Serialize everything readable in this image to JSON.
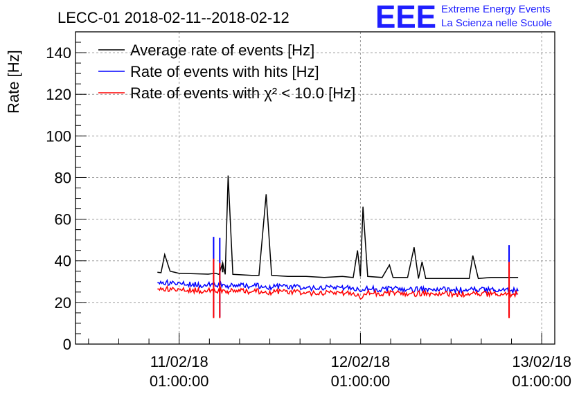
{
  "chart_data": {
    "type": "line",
    "title": "LECC-01 2018-02-11--2018-02-12",
    "ylabel": "Rate [Hz]",
    "xlabel": "",
    "ylim": [
      0,
      150
    ],
    "xlim": [
      -0.286,
      1.036
    ],
    "x_unit": "days since 11/02/18 01:00:00",
    "y_ticks": [
      0,
      20,
      40,
      60,
      80,
      100,
      120,
      140
    ],
    "x_ticks": [
      {
        "x": 0,
        "date": "11/02/18",
        "time": "01:00:00"
      },
      {
        "x": 0.5,
        "date": "12/02/18",
        "time": "01:00:00"
      },
      {
        "x": 1,
        "date": "13/02/18",
        "time": "01:00:00"
      }
    ],
    "grid": true,
    "legend_position": "top-left",
    "series": [
      {
        "name": "Average rate of events [Hz]",
        "color": "#000000",
        "points": [
          [
            -0.06,
            34.5
          ],
          [
            -0.05,
            34.3
          ],
          [
            -0.04,
            43
          ],
          [
            -0.025,
            35
          ],
          [
            0,
            34
          ],
          [
            0.04,
            33.8
          ],
          [
            0.08,
            33.6
          ],
          [
            0.1,
            34
          ],
          [
            0.11,
            33.5
          ],
          [
            0.12,
            39
          ],
          [
            0.127,
            33.5
          ],
          [
            0.135,
            81
          ],
          [
            0.148,
            33.5
          ],
          [
            0.2,
            33
          ],
          [
            0.22,
            33
          ],
          [
            0.24,
            72
          ],
          [
            0.255,
            33
          ],
          [
            0.3,
            32.5
          ],
          [
            0.35,
            32.5
          ],
          [
            0.4,
            32
          ],
          [
            0.45,
            32.5
          ],
          [
            0.48,
            32
          ],
          [
            0.492,
            45
          ],
          [
            0.5,
            32.5
          ],
          [
            0.507,
            66
          ],
          [
            0.52,
            32.5
          ],
          [
            0.56,
            32
          ],
          [
            0.58,
            38
          ],
          [
            0.59,
            32
          ],
          [
            0.63,
            32
          ],
          [
            0.648,
            46.5
          ],
          [
            0.66,
            31.5
          ],
          [
            0.67,
            39.5
          ],
          [
            0.68,
            31.5
          ],
          [
            0.72,
            31.5
          ],
          [
            0.76,
            31.5
          ],
          [
            0.8,
            31.5
          ],
          [
            0.81,
            42.5
          ],
          [
            0.825,
            31.5
          ],
          [
            0.86,
            32
          ],
          [
            0.9,
            32
          ],
          [
            0.935,
            32
          ]
        ],
        "spikes": [
          [
            0.095,
            40
          ],
          [
            0.12,
            39
          ],
          [
            0.91,
            36
          ]
        ]
      },
      {
        "name": "Rate of events with hits [Hz]",
        "color": "#0000ff",
        "points": [
          [
            -0.06,
            29.5
          ],
          [
            0,
            29
          ],
          [
            0.05,
            28.5
          ],
          [
            0.1,
            28.5
          ],
          [
            0.15,
            28
          ],
          [
            0.2,
            28
          ],
          [
            0.25,
            27.5
          ],
          [
            0.3,
            27.5
          ],
          [
            0.35,
            27.2
          ],
          [
            0.4,
            27
          ],
          [
            0.45,
            26.8
          ],
          [
            0.5,
            26.5
          ],
          [
            0.55,
            26.5
          ],
          [
            0.6,
            26.5
          ],
          [
            0.65,
            26.2
          ],
          [
            0.7,
            26.2
          ],
          [
            0.75,
            26
          ],
          [
            0.8,
            26
          ],
          [
            0.85,
            26
          ],
          [
            0.9,
            26
          ],
          [
            0.935,
            25.5
          ]
        ],
        "spikes": [
          [
            0.095,
            51.5,
            13
          ],
          [
            0.112,
            51,
            13
          ],
          [
            0.91,
            47.5,
            13.5
          ]
        ]
      },
      {
        "name": "Rate of events with χ² < 10.0 [Hz]",
        "color": "#ff0000",
        "points": [
          [
            -0.06,
            26.5
          ],
          [
            0,
            26
          ],
          [
            0.05,
            25.8
          ],
          [
            0.1,
            25.6
          ],
          [
            0.15,
            25.5
          ],
          [
            0.2,
            25.3
          ],
          [
            0.25,
            25
          ],
          [
            0.3,
            25
          ],
          [
            0.35,
            24.8
          ],
          [
            0.4,
            24.5
          ],
          [
            0.45,
            24.2
          ],
          [
            0.49,
            24
          ],
          [
            0.5,
            22.5
          ],
          [
            0.51,
            24.5
          ],
          [
            0.55,
            24.5
          ],
          [
            0.6,
            24.3
          ],
          [
            0.65,
            24.2
          ],
          [
            0.7,
            24
          ],
          [
            0.75,
            24
          ],
          [
            0.8,
            24
          ],
          [
            0.85,
            24
          ],
          [
            0.9,
            24
          ],
          [
            0.935,
            24
          ]
        ],
        "spikes": [
          [
            0.095,
            41,
            12.5
          ],
          [
            0.112,
            39,
            12.5
          ],
          [
            0.91,
            39.5,
            12.5
          ]
        ]
      }
    ]
  },
  "logo": {
    "letters": "EEE",
    "line1": "Extreme Energy Events",
    "line2": "La Scienza nelle Scuole"
  }
}
